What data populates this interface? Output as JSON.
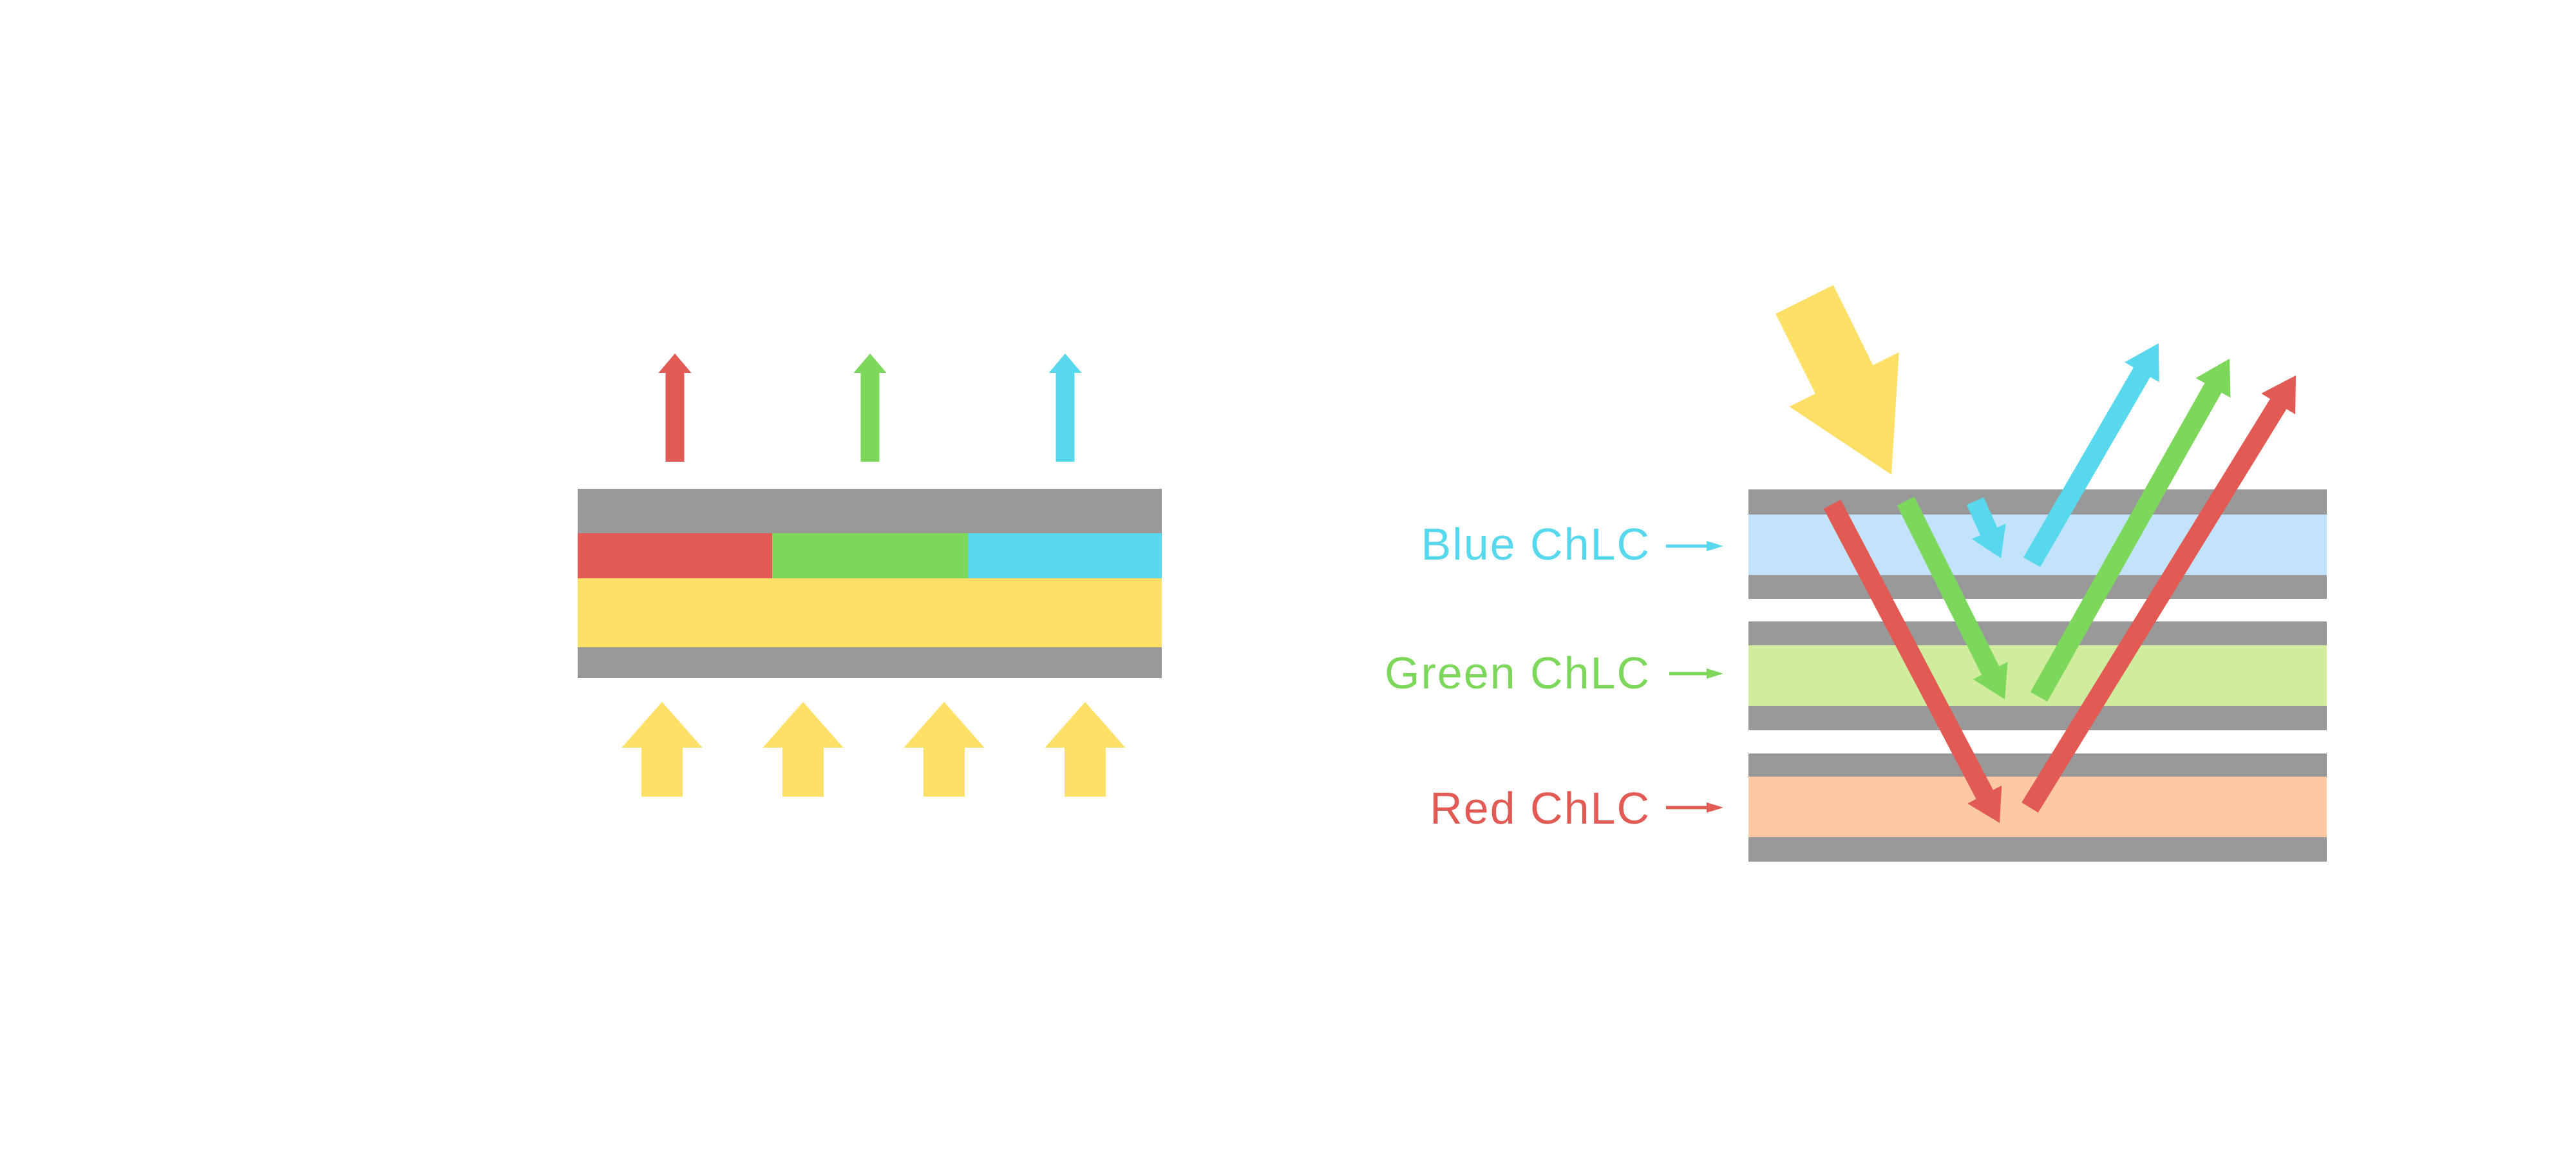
{
  "background": "#ffffff",
  "colors": {
    "substrate_gray": "#999999",
    "red": "#E15A54",
    "green": "#7CD75A",
    "blue": "#57D8ED",
    "yellow": "#FDE065",
    "chlc_blue_layer": "#C3E3FA",
    "chlc_green_layer": "#D0EC9D",
    "chlc_red_layer": "#FDC8A3"
  },
  "right_diagram": {
    "labels": {
      "blue": {
        "text": "Blue ChLC",
        "color": "#57D8ED"
      },
      "green": {
        "text": "Green ChLC",
        "color": "#7CD75A"
      },
      "red": {
        "text": "Red ChLC",
        "color": "#E15A54"
      }
    }
  }
}
